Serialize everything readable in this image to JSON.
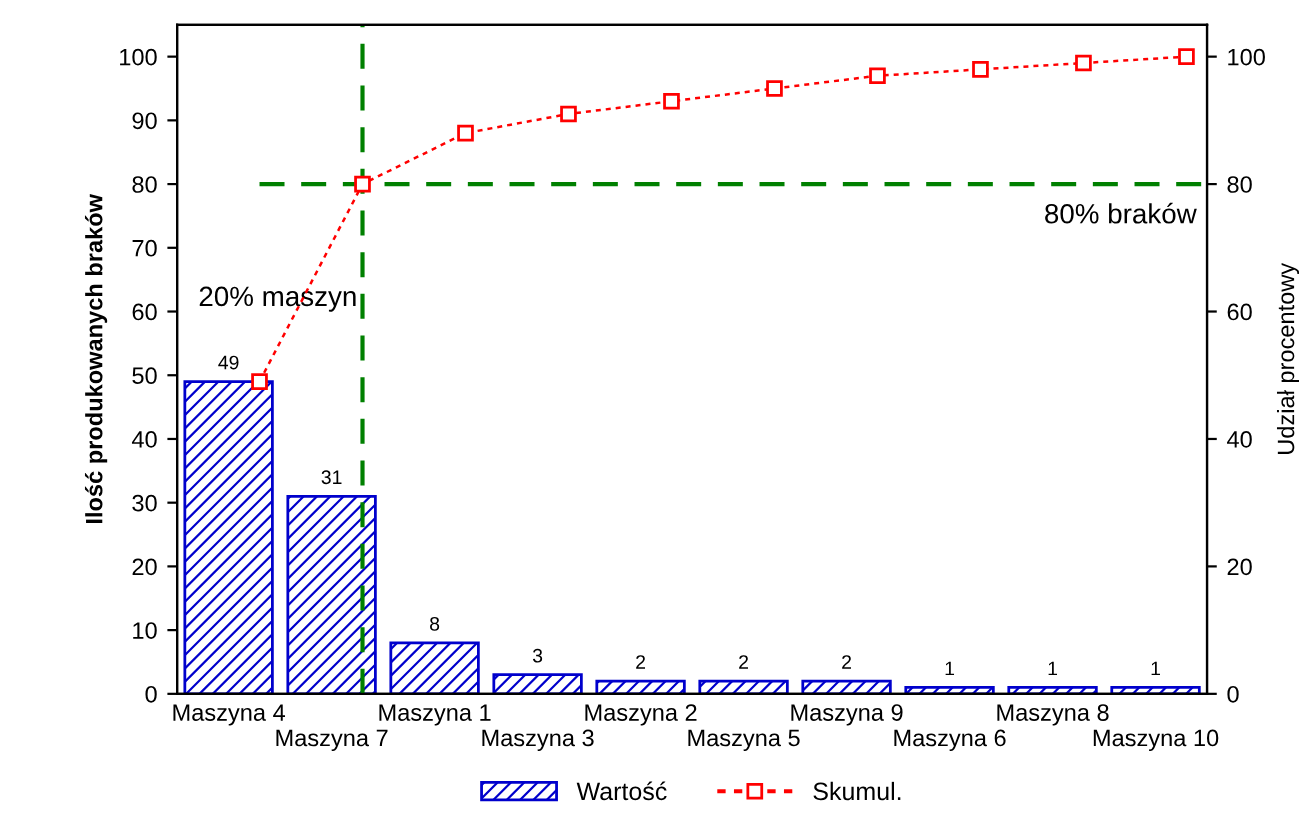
{
  "chart_data": {
    "type": "bar",
    "xlabel": null,
    "ylabel": "Ilość produkowanych braków",
    "y2label": "Udział procentowy",
    "categories": [
      "Maszyna 4",
      "Maszyna 7",
      "Maszyna 1",
      "Maszyna 3",
      "Maszyna 2",
      "Maszyna 5",
      "Maszyna 9",
      "Maszyna 6",
      "Maszyna 8",
      "Maszyna 10"
    ],
    "series": [
      {
        "name": "Wartość",
        "color": "#0000cc",
        "values": [
          49,
          31,
          8,
          3,
          2,
          2,
          2,
          1,
          1,
          1
        ],
        "value_labels": [
          "49",
          "31",
          "8",
          "3",
          "2",
          "2",
          "2",
          "1",
          "1",
          "1"
        ]
      },
      {
        "name": "Skumul.",
        "type": "line",
        "axis": "y2",
        "color": "#ff0000",
        "marker": "square",
        "line_style": "dotted",
        "values": [
          49,
          80,
          88,
          91,
          93,
          95,
          97,
          98,
          99,
          100
        ]
      }
    ],
    "ylim": [
      0,
      105
    ],
    "yticks": [
      0,
      10,
      20,
      30,
      40,
      50,
      60,
      70,
      80,
      90,
      100
    ],
    "y2lim": [
      0,
      105
    ],
    "y2ticks": [
      0,
      20,
      40,
      60,
      80,
      100
    ],
    "ref_lines": [
      {
        "axis": "x",
        "value": "Maszyna 7",
        "color": "#008000",
        "line_style": "dashed"
      },
      {
        "axis": "y2",
        "value": 80,
        "label": "80% braków",
        "color": "#008000",
        "line_style": "dashed"
      }
    ],
    "annotations": [
      "20% maszyn"
    ],
    "legend": "bottom",
    "grid": false
  }
}
